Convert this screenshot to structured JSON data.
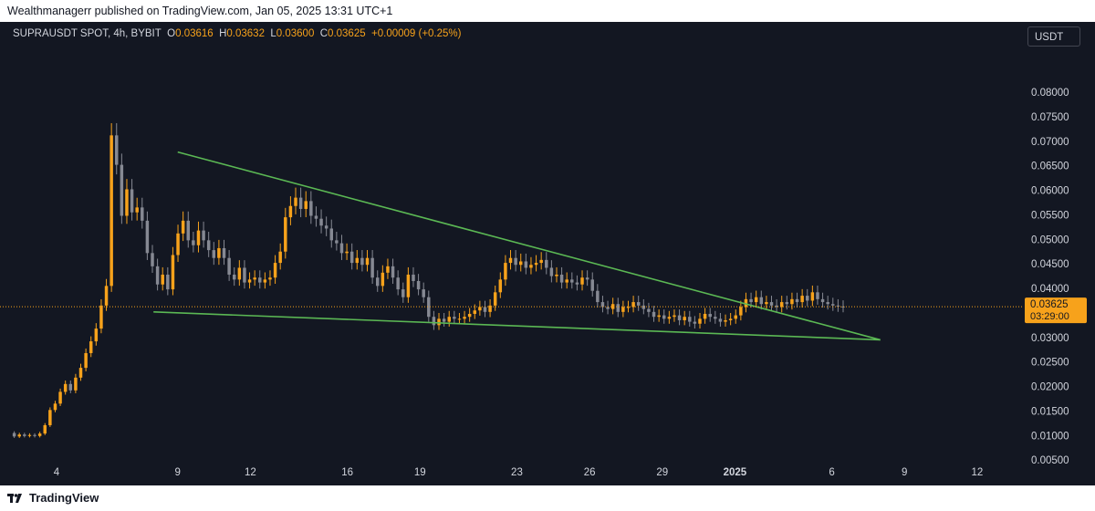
{
  "header": {
    "published_text": "Wealthmanagerr published on TradingView.com, Jan 05, 2025 13:31 UTC+1"
  },
  "legend": {
    "symbol": "SUPRAUSDT SPOT, 4h, BYBIT",
    "open_label": "O",
    "open_value": "0.03616",
    "high_label": "H",
    "high_value": "0.03632",
    "low_label": "L",
    "low_value": "0.03600",
    "close_label": "C",
    "close_value": "0.03625",
    "change": "+0.00009 (+0.25%)"
  },
  "currency_button": {
    "label": "USDT"
  },
  "price_tag": {
    "price": "0.03625",
    "countdown": "03:29:00"
  },
  "footer": {
    "logo_text": "TradingView"
  },
  "colors": {
    "background": "#131722",
    "up": "#f7a21b",
    "down": "#868993",
    "trendline": "#5bb854",
    "price_line": "#f7a21b",
    "axis_text": "#d1d4dc"
  },
  "chart_data": {
    "type": "candlestick",
    "x_ticks": [
      "4",
      "9",
      "12",
      "16",
      "19",
      "23",
      "26",
      "29",
      "2025",
      "6",
      "9",
      "12"
    ],
    "y_ticks": [
      "0.08000",
      "0.07500",
      "0.07000",
      "0.06500",
      "0.06000",
      "0.05500",
      "0.05000",
      "0.04500",
      "0.04000",
      "0.03000",
      "0.02500",
      "0.02000",
      "0.01500",
      "0.01000",
      "0.00500"
    ],
    "ylim": [
      0.0,
      0.0855
    ],
    "last_price": 0.03625,
    "trendlines": [
      {
        "name": "upper",
        "start": {
          "date": "Dec 09",
          "price": 0.0678
        },
        "end": {
          "date": "Jan 07",
          "price": 0.0295
        }
      },
      {
        "name": "lower",
        "start": {
          "date": "Dec 08",
          "price": 0.0352
        },
        "end": {
          "date": "Jan 07",
          "price": 0.0295
        }
      }
    ],
    "price_path": [
      0.0105,
      0.0098,
      0.0102,
      0.0099,
      0.0101,
      0.0099,
      0.0104,
      0.0121,
      0.0152,
      0.0165,
      0.0189,
      0.0205,
      0.0192,
      0.0218,
      0.0238,
      0.0268,
      0.0292,
      0.0318,
      0.0365,
      0.0405,
      0.0712,
      0.0652,
      0.0548,
      0.0602,
      0.0555,
      0.0565,
      0.0538,
      0.0472,
      0.0445,
      0.0408,
      0.0428,
      0.0398,
      0.0468,
      0.0512,
      0.0538,
      0.0498,
      0.0488,
      0.0518,
      0.0498,
      0.0478,
      0.0462,
      0.0482,
      0.0462,
      0.0428,
      0.0418,
      0.0442,
      0.0412,
      0.0418,
      0.0422,
      0.0412,
      0.0418,
      0.0422,
      0.0452,
      0.0475,
      0.0545,
      0.0568,
      0.0585,
      0.0562,
      0.0578,
      0.0548,
      0.0542,
      0.0528,
      0.0522,
      0.0498,
      0.0492,
      0.0472,
      0.0475,
      0.0452,
      0.0462,
      0.0448,
      0.0462,
      0.0422,
      0.0405,
      0.0432,
      0.0445,
      0.0422,
      0.0398,
      0.0382,
      0.0428,
      0.0415,
      0.0398,
      0.0382,
      0.0342,
      0.0325,
      0.0338,
      0.0332,
      0.0342,
      0.0338,
      0.0338,
      0.0342,
      0.0348,
      0.0355,
      0.0362,
      0.0352,
      0.0365,
      0.0392,
      0.0418,
      0.0452,
      0.0462,
      0.0448,
      0.0455,
      0.0442,
      0.0448,
      0.0452,
      0.0458,
      0.0442,
      0.0425,
      0.0428,
      0.0412,
      0.0418,
      0.0412,
      0.0408,
      0.0422,
      0.0418,
      0.0395,
      0.0372,
      0.0362,
      0.0358,
      0.0368,
      0.0352,
      0.0362,
      0.0362,
      0.0372,
      0.0365,
      0.0358,
      0.0352,
      0.0342,
      0.0345,
      0.0338,
      0.0342,
      0.0345,
      0.0335,
      0.0342,
      0.0332,
      0.0328,
      0.0338,
      0.0348,
      0.0342,
      0.0338,
      0.0332,
      0.0335,
      0.0338,
      0.0345,
      0.0362,
      0.0378,
      0.0372,
      0.0382,
      0.0368,
      0.0372,
      0.0365,
      0.0362,
      0.0372,
      0.0368,
      0.0378,
      0.0372,
      0.0385,
      0.0375,
      0.0392,
      0.0378,
      0.0372,
      0.0368,
      0.0365,
      0.0363,
      0.0362
    ]
  }
}
